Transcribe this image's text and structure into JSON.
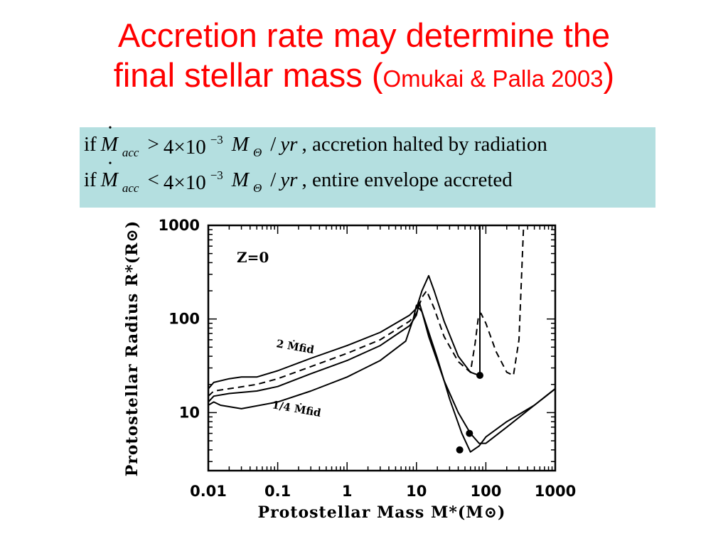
{
  "slide": {
    "title_line1": "Accretion rate may determine the",
    "title_line2_main": "final stellar mass (",
    "title_line2_small": "Omukai & Palla 2003",
    "title_line2_close": ")",
    "title_color": "#ff0000"
  },
  "conditions": {
    "box_color": "#b4dfe0",
    "rows": [
      {
        "if": "if",
        "mdot": "M",
        "sub": "acc",
        "op": ">",
        "coef": "4×10",
        "exp": "−3",
        "unit_m": "M",
        "unit_sub": "Θ",
        "per": "/",
        "yr": "yr",
        "tail": ", accretion halted by radiation"
      },
      {
        "if": "if",
        "mdot": "M",
        "sub": "acc",
        "op": "<",
        "coef": "4×10",
        "exp": "−3",
        "unit_m": "M",
        "unit_sub": "Θ",
        "per": "/",
        "yr": "yr",
        "tail": ", entire envelope  accreted"
      }
    ]
  },
  "chart_data": {
    "type": "line",
    "xscale": "log",
    "yscale": "log",
    "xlim": [
      0.01,
      1000
    ],
    "ylim": [
      2.4,
      1000
    ],
    "x_ticks": [
      "0.01",
      "0.1",
      "1",
      "10",
      "100",
      "1000"
    ],
    "y_ticks": [
      "1000",
      "100",
      "10"
    ],
    "xlabel": "Protostellar Mass M*(M⊙)",
    "ylabel": "Protostellar Radius R*(R⊙)",
    "annotations": {
      "metallicity": "Z=0",
      "upper": "2 Ṁfid",
      "lower": "1/4 Ṁfid"
    },
    "series": [
      {
        "style": "solid",
        "points": [
          [
            0.01,
            18
          ],
          [
            0.012,
            21
          ],
          [
            0.02,
            23
          ],
          [
            0.03,
            24
          ],
          [
            0.05,
            24
          ],
          [
            0.1,
            28
          ],
          [
            0.3,
            38
          ],
          [
            1,
            52
          ],
          [
            3,
            72
          ],
          [
            8,
            110
          ],
          [
            10,
            130
          ],
          [
            12,
            200
          ],
          [
            15,
            290
          ],
          [
            18,
            200
          ],
          [
            25,
            95
          ],
          [
            40,
            40
          ],
          [
            60,
            27
          ],
          [
            80,
            25
          ],
          [
            82,
            25
          ],
          [
            82,
            1000
          ]
        ]
      },
      {
        "style": "dashed",
        "points": [
          [
            0.01,
            15
          ],
          [
            0.012,
            17
          ],
          [
            0.02,
            18
          ],
          [
            0.05,
            20
          ],
          [
            0.1,
            23
          ],
          [
            0.3,
            31
          ],
          [
            1,
            43
          ],
          [
            3,
            60
          ],
          [
            8,
            95
          ],
          [
            10,
            115
          ],
          [
            12,
            170
          ],
          [
            14,
            200
          ],
          [
            18,
            130
          ],
          [
            25,
            65
          ],
          [
            40,
            35
          ],
          [
            60,
            27
          ],
          [
            70,
            55
          ],
          [
            78,
            105
          ],
          [
            85,
            115
          ],
          [
            100,
            90
          ],
          [
            140,
            45
          ],
          [
            200,
            27
          ],
          [
            250,
            25
          ],
          [
            300,
            60
          ],
          [
            350,
            1000
          ]
        ]
      },
      {
        "style": "solid",
        "points": [
          [
            0.01,
            13
          ],
          [
            0.012,
            15
          ],
          [
            0.02,
            16
          ],
          [
            0.05,
            17
          ],
          [
            0.1,
            19
          ],
          [
            0.3,
            26
          ],
          [
            1,
            36
          ],
          [
            3,
            52
          ],
          [
            8,
            85
          ],
          [
            10,
            110
          ],
          [
            11,
            150
          ],
          [
            12,
            120
          ],
          [
            15,
            65
          ],
          [
            25,
            22
          ],
          [
            40,
            10
          ],
          [
            60,
            6
          ],
          [
            80,
            4.7
          ],
          [
            100,
            4.7
          ],
          [
            200,
            7
          ],
          [
            500,
            12
          ],
          [
            1000,
            18
          ]
        ]
      },
      {
        "style": "solid",
        "points": [
          [
            0.01,
            12
          ],
          [
            0.012,
            13
          ],
          [
            0.015,
            12
          ],
          [
            0.03,
            11
          ],
          [
            0.1,
            13
          ],
          [
            0.3,
            17
          ],
          [
            1,
            24
          ],
          [
            3,
            36
          ],
          [
            7,
            58
          ],
          [
            9,
            100
          ],
          [
            10,
            140
          ],
          [
            12,
            120
          ],
          [
            20,
            38
          ],
          [
            30,
            14
          ],
          [
            45,
            6
          ],
          [
            60,
            3.8
          ],
          [
            80,
            4.4
          ],
          [
            100,
            5.5
          ],
          [
            200,
            8
          ],
          [
            500,
            12
          ],
          [
            1000,
            18
          ]
        ]
      }
    ],
    "markers": [
      [
        82,
        25
      ],
      [
        58,
        6
      ],
      [
        42,
        4
      ]
    ]
  }
}
